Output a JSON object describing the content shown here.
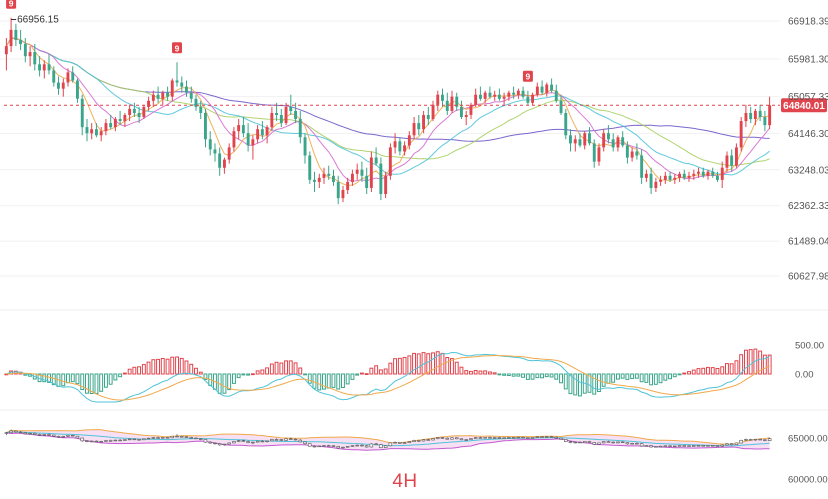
{
  "chart_data": {
    "type": "candlestick",
    "timeframe": "4H",
    "price_axis": {
      "ticks": [
        66918.39,
        65981.3,
        65057.33,
        64146.3,
        63248.03,
        62362.33,
        61489.04,
        60627.98
      ],
      "tick_labels": [
        "66918.39",
        "65981.30",
        "65057.33",
        "64146.30",
        "63248.03",
        "62362.33",
        "61489.04",
        "60627.98"
      ]
    },
    "last_price": {
      "value": 64840.01,
      "label": "64840.01",
      "color": "#e0444c"
    },
    "high_marker": {
      "value": 66956.15,
      "label": "66956.15"
    },
    "td_markers": [
      {
        "label": "9",
        "candle": 1
      },
      {
        "label": "9",
        "candle": 36
      },
      {
        "label": "9",
        "candle": 110
      }
    ],
    "candles": [
      [
        66100,
        66500,
        65700,
        66300
      ],
      [
        66300,
        67000,
        66150,
        66700
      ],
      [
        66700,
        66850,
        66300,
        66450
      ],
      [
        66450,
        66700,
        66200,
        66350
      ],
      [
        66350,
        66500,
        65900,
        66050
      ],
      [
        66050,
        66300,
        65800,
        66150
      ],
      [
        66150,
        66350,
        65700,
        65850
      ],
      [
        65850,
        66050,
        65550,
        65700
      ],
      [
        65700,
        65950,
        65500,
        65850
      ],
      [
        65850,
        66100,
        65600,
        65700
      ],
      [
        65700,
        65800,
        65300,
        65400
      ],
      [
        65400,
        65550,
        65100,
        65250
      ],
      [
        65250,
        65500,
        65050,
        65400
      ],
      [
        65400,
        65750,
        65300,
        65650
      ],
      [
        65650,
        65800,
        65400,
        65450
      ],
      [
        65450,
        65500,
        64900,
        65000
      ],
      [
        65000,
        65100,
        64100,
        64300
      ],
      [
        64300,
        64500,
        63950,
        64150
      ],
      [
        64150,
        64400,
        64000,
        64250
      ],
      [
        64250,
        64400,
        64050,
        64100
      ],
      [
        64100,
        64300,
        63950,
        64200
      ],
      [
        64200,
        64500,
        64100,
        64400
      ],
      [
        64400,
        64600,
        64250,
        64300
      ],
      [
        64300,
        64550,
        64200,
        64500
      ],
      [
        64500,
        64700,
        64350,
        64450
      ],
      [
        64450,
        64650,
        64300,
        64600
      ],
      [
        64600,
        64850,
        64450,
        64750
      ],
      [
        64750,
        64900,
        64550,
        64650
      ],
      [
        64650,
        64800,
        64400,
        64550
      ],
      [
        64550,
        64850,
        64500,
        64800
      ],
      [
        64800,
        65050,
        64700,
        64950
      ],
      [
        64950,
        65200,
        64800,
        65100
      ],
      [
        65100,
        65300,
        64900,
        65000
      ],
      [
        65000,
        65200,
        64850,
        65150
      ],
      [
        65150,
        65300,
        64950,
        65050
      ],
      [
        65050,
        65500,
        64950,
        65450
      ],
      [
        65450,
        65900,
        65300,
        65400
      ],
      [
        65400,
        65550,
        65150,
        65300
      ],
      [
        65300,
        65450,
        65050,
        65150
      ],
      [
        65150,
        65300,
        64900,
        65000
      ],
      [
        65000,
        65100,
        64700,
        64800
      ],
      [
        64800,
        64950,
        64500,
        64650
      ],
      [
        64650,
        64750,
        63800,
        64000
      ],
      [
        64000,
        64200,
        63600,
        63750
      ],
      [
        63750,
        63900,
        63450,
        63650
      ],
      [
        63650,
        63800,
        63100,
        63300
      ],
      [
        63300,
        63550,
        63150,
        63500
      ],
      [
        63500,
        63900,
        63400,
        63800
      ],
      [
        63800,
        64300,
        63700,
        64200
      ],
      [
        64200,
        64500,
        64000,
        64350
      ],
      [
        64350,
        64550,
        64050,
        64150
      ],
      [
        64150,
        64400,
        63700,
        63850
      ],
      [
        63850,
        64100,
        63500,
        64000
      ],
      [
        64000,
        64350,
        63900,
        64250
      ],
      [
        64250,
        64450,
        64000,
        64100
      ],
      [
        64100,
        64350,
        63900,
        64300
      ],
      [
        64300,
        64800,
        64200,
        64650
      ],
      [
        64650,
        64900,
        64450,
        64600
      ],
      [
        64600,
        64750,
        64300,
        64400
      ],
      [
        64400,
        64900,
        64350,
        64800
      ],
      [
        64800,
        65100,
        64600,
        64700
      ],
      [
        64700,
        64900,
        64400,
        64500
      ],
      [
        64500,
        64700,
        63900,
        64050
      ],
      [
        64050,
        64150,
        63400,
        63600
      ],
      [
        63600,
        63700,
        62900,
        63000
      ],
      [
        63000,
        63200,
        62700,
        62950
      ],
      [
        62950,
        63150,
        62800,
        63050
      ],
      [
        63050,
        63300,
        62900,
        63150
      ],
      [
        63150,
        63350,
        63000,
        63100
      ],
      [
        63100,
        63250,
        62850,
        62950
      ],
      [
        62950,
        63100,
        62400,
        62550
      ],
      [
        62550,
        62850,
        62450,
        62750
      ],
      [
        62750,
        63050,
        62650,
        62950
      ],
      [
        62950,
        63250,
        62850,
        63150
      ],
      [
        63150,
        63400,
        63000,
        63250
      ],
      [
        63250,
        63450,
        62950,
        63100
      ],
      [
        63100,
        63300,
        62650,
        62800
      ],
      [
        62800,
        63700,
        62700,
        63550
      ],
      [
        63550,
        63800,
        63350,
        63400
      ],
      [
        63400,
        63550,
        62500,
        62650
      ],
      [
        62650,
        63200,
        62550,
        63100
      ],
      [
        63100,
        63900,
        63000,
        63800
      ],
      [
        63800,
        64150,
        63650,
        63950
      ],
      [
        63950,
        64050,
        63600,
        63700
      ],
      [
        63700,
        63950,
        63600,
        63850
      ],
      [
        63850,
        64200,
        63750,
        64100
      ],
      [
        64100,
        64550,
        64000,
        64400
      ],
      [
        64400,
        64600,
        64100,
        64250
      ],
      [
        64250,
        64700,
        64150,
        64600
      ],
      [
        64600,
        64800,
        64350,
        64500
      ],
      [
        64500,
        64950,
        64450,
        64850
      ],
      [
        64850,
        65200,
        64700,
        65100
      ],
      [
        65100,
        65250,
        64800,
        64950
      ],
      [
        64950,
        65150,
        64600,
        64700
      ],
      [
        64700,
        65200,
        64650,
        65050
      ],
      [
        65050,
        65150,
        64700,
        64800
      ],
      [
        64800,
        64950,
        64500,
        64550
      ],
      [
        64550,
        64700,
        64350,
        64600
      ],
      [
        64600,
        64900,
        64500,
        64850
      ],
      [
        64850,
        65250,
        64800,
        65100
      ],
      [
        65100,
        65300,
        64950,
        65000
      ],
      [
        65000,
        65200,
        64900,
        65150
      ],
      [
        65150,
        65300,
        65000,
        65050
      ],
      [
        65050,
        65200,
        64950,
        65100
      ],
      [
        65100,
        65250,
        64950,
        65000
      ],
      [
        65000,
        65150,
        64850,
        65050
      ],
      [
        65050,
        65200,
        64950,
        65150
      ],
      [
        65150,
        65300,
        65000,
        65100
      ],
      [
        65100,
        65250,
        65000,
        65200
      ],
      [
        65200,
        65300,
        65000,
        65050
      ],
      [
        65050,
        65200,
        64850,
        64900
      ],
      [
        64900,
        65150,
        64850,
        65100
      ],
      [
        65100,
        65400,
        65050,
        65300
      ],
      [
        65300,
        65450,
        65100,
        65150
      ],
      [
        65150,
        65400,
        65050,
        65350
      ],
      [
        65350,
        65500,
        65150,
        65200
      ],
      [
        65200,
        65350,
        64900,
        64950
      ],
      [
        64950,
        65100,
        64600,
        64650
      ],
      [
        64650,
        64750,
        64000,
        64100
      ],
      [
        64100,
        64250,
        63700,
        63900
      ],
      [
        63900,
        64100,
        63700,
        64000
      ],
      [
        64000,
        64150,
        63800,
        63850
      ],
      [
        63850,
        64200,
        63750,
        64150
      ],
      [
        64150,
        64300,
        63850,
        63900
      ],
      [
        63900,
        64000,
        63300,
        63450
      ],
      [
        63450,
        63900,
        63350,
        63800
      ],
      [
        63800,
        64250,
        63700,
        64150
      ],
      [
        64150,
        64350,
        63900,
        64000
      ],
      [
        64000,
        64150,
        63700,
        63800
      ],
      [
        63800,
        64100,
        63700,
        64050
      ],
      [
        64050,
        64200,
        63800,
        63850
      ],
      [
        63850,
        63950,
        63400,
        63550
      ],
      [
        63550,
        63800,
        63450,
        63700
      ],
      [
        63700,
        63900,
        63500,
        63600
      ],
      [
        63600,
        63750,
        62900,
        63050
      ],
      [
        63050,
        63250,
        62950,
        63150
      ],
      [
        63150,
        63300,
        62650,
        62800
      ],
      [
        62800,
        63050,
        62700,
        62950
      ],
      [
        62950,
        63100,
        62850,
        63000
      ],
      [
        63000,
        63200,
        62900,
        63100
      ],
      [
        63100,
        63200,
        62950,
        63000
      ],
      [
        63000,
        63150,
        62900,
        63050
      ],
      [
        63050,
        63200,
        62950,
        63150
      ],
      [
        63150,
        63250,
        63000,
        63050
      ],
      [
        63050,
        63200,
        62950,
        63100
      ],
      [
        63100,
        63250,
        63000,
        63150
      ],
      [
        63150,
        63300,
        63050,
        63200
      ],
      [
        63200,
        63300,
        63050,
        63100
      ],
      [
        63100,
        63250,
        63000,
        63200
      ],
      [
        63200,
        63300,
        63050,
        63100
      ],
      [
        63100,
        63200,
        62950,
        63000
      ],
      [
        63000,
        63450,
        62800,
        63300
      ],
      [
        63300,
        63700,
        63200,
        63600
      ],
      [
        63600,
        63750,
        63200,
        63350
      ],
      [
        63350,
        63900,
        63300,
        63800
      ],
      [
        63800,
        64550,
        63700,
        64450
      ],
      [
        64450,
        64850,
        64300,
        64650
      ],
      [
        64650,
        64800,
        64400,
        64500
      ],
      [
        64500,
        64750,
        64350,
        64700
      ],
      [
        64700,
        64850,
        64450,
        64550
      ],
      [
        64550,
        64700,
        64200,
        64350
      ],
      [
        64350,
        65050,
        64250,
        64840
      ]
    ],
    "moving_averages": [
      {
        "period": 5,
        "color": "#f0a94b"
      },
      {
        "period": 10,
        "color": "#d46bd2"
      },
      {
        "period": 20,
        "color": "#4fc3d9"
      },
      {
        "period": 30,
        "color": "#a7cf5f"
      },
      {
        "period": 60,
        "color": "#6e55c8"
      }
    ],
    "candle_up_color": "#e0444c",
    "candle_down_color": "#3aa58a",
    "macd_panel": {
      "tick_labels": [
        "500.00",
        "0.00"
      ],
      "tick_values": [
        500,
        0
      ],
      "histogram_up_color": "#e0444c",
      "histogram_down_color": "#3aa58a",
      "dif_color": "#4fc3d9",
      "dea_color": "#f0a94b"
    },
    "boll_panel": {
      "tick_labels": [
        "65000.00",
        "60000.00"
      ],
      "tick_values": [
        65000,
        60000
      ],
      "fill_color": "#f4d3f0",
      "upper_color": "#f0a94b",
      "middle_color": "#4fc3d9",
      "lower_color": "#c45ad1"
    }
  }
}
